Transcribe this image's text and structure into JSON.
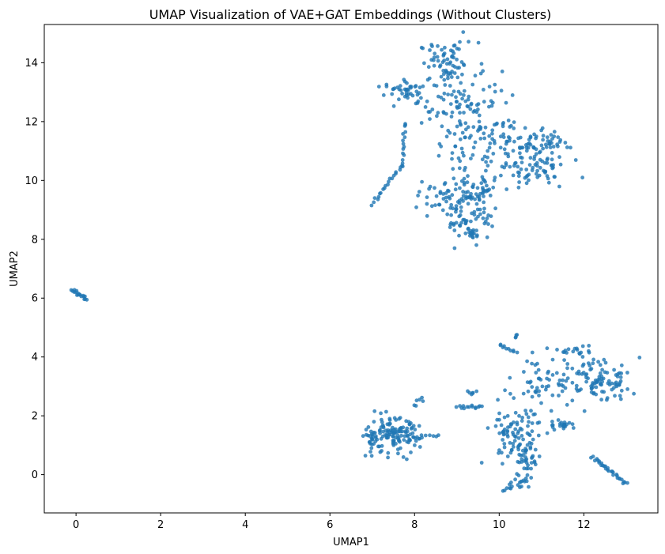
{
  "chart_data": {
    "type": "scatter",
    "title": "UMAP Visualization of VAE+GAT Embeddings (Without Clusters)",
    "xlabel": "UMAP1",
    "ylabel": "UMAP2",
    "xlim": [
      -0.75,
      13.75
    ],
    "ylim": [
      -1.3,
      15.3
    ],
    "xticks": [
      0,
      2,
      4,
      6,
      8,
      10,
      12
    ],
    "yticks": [
      0,
      2,
      4,
      6,
      8,
      10,
      12,
      14
    ],
    "grid": false,
    "legend": "none",
    "point_color": "#1f77b4",
    "point_alpha": 0.8,
    "clusters": [
      {
        "kind": "blob",
        "cx": 8.8,
        "cy": 14.0,
        "sx": 0.35,
        "sy": 0.35,
        "n": 70
      },
      {
        "kind": "blob",
        "cx": 7.8,
        "cy": 13.0,
        "sx": 0.25,
        "sy": 0.2,
        "n": 45
      },
      {
        "kind": "blob",
        "cx": 9.3,
        "cy": 12.6,
        "sx": 0.55,
        "sy": 0.55,
        "n": 90
      },
      {
        "kind": "blob",
        "cx": 9.8,
        "cy": 11.3,
        "sx": 0.6,
        "sy": 0.4,
        "n": 80
      },
      {
        "kind": "blob",
        "cx": 10.8,
        "cy": 10.6,
        "sx": 0.45,
        "sy": 0.45,
        "n": 90
      },
      {
        "kind": "blob",
        "cx": 11.2,
        "cy": 11.3,
        "sx": 0.15,
        "sy": 0.15,
        "n": 18
      },
      {
        "kind": "blob",
        "cx": 9.3,
        "cy": 9.6,
        "sx": 0.45,
        "sy": 0.5,
        "n": 90
      },
      {
        "kind": "blob",
        "cx": 8.6,
        "cy": 9.4,
        "sx": 0.25,
        "sy": 0.25,
        "n": 30
      },
      {
        "kind": "blob",
        "cx": 9.3,
        "cy": 8.6,
        "sx": 0.3,
        "sy": 0.3,
        "n": 45
      },
      {
        "kind": "blob",
        "cx": 9.4,
        "cy": 8.1,
        "sx": 0.05,
        "sy": 0.05,
        "n": 8
      },
      {
        "kind": "line",
        "x0": 7.0,
        "y0": 9.2,
        "x1": 7.7,
        "y1": 10.5,
        "n": 20
      },
      {
        "kind": "line",
        "x0": 7.7,
        "y0": 10.5,
        "x1": 7.8,
        "y1": 12.0,
        "n": 15
      },
      {
        "kind": "blob",
        "cx": 7.5,
        "cy": 1.3,
        "sx": 0.3,
        "sy": 0.3,
        "n": 120
      },
      {
        "kind": "blob",
        "cx": 7.0,
        "cy": 1.25,
        "sx": 0.1,
        "sy": 0.25,
        "n": 25
      },
      {
        "kind": "line",
        "x0": 7.9,
        "y0": 1.3,
        "x1": 8.6,
        "y1": 1.3,
        "n": 10
      },
      {
        "kind": "line",
        "x0": 8.0,
        "y0": 2.4,
        "x1": 8.2,
        "y1": 2.6,
        "n": 6
      },
      {
        "kind": "line",
        "x0": 9.0,
        "y0": 2.3,
        "x1": 9.6,
        "y1": 2.3,
        "n": 14
      },
      {
        "kind": "blob",
        "cx": 9.4,
        "cy": 2.8,
        "sx": 0.06,
        "sy": 0.05,
        "n": 6
      },
      {
        "kind": "blob",
        "cx": 10.3,
        "cy": 1.2,
        "sx": 0.3,
        "sy": 0.45,
        "n": 60
      },
      {
        "kind": "blob",
        "cx": 10.7,
        "cy": 0.6,
        "sx": 0.15,
        "sy": 0.35,
        "n": 35
      },
      {
        "kind": "blob",
        "cx": 10.5,
        "cy": -0.2,
        "sx": 0.1,
        "sy": 0.12,
        "n": 15
      },
      {
        "kind": "line",
        "x0": 10.1,
        "y0": -0.55,
        "x1": 10.3,
        "y1": -0.4,
        "n": 6
      },
      {
        "kind": "blob",
        "cx": 10.6,
        "cy": 1.9,
        "sx": 0.3,
        "sy": 0.3,
        "n": 30
      },
      {
        "kind": "blob",
        "cx": 11.5,
        "cy": 1.7,
        "sx": 0.15,
        "sy": 0.1,
        "n": 22
      },
      {
        "kind": "blob",
        "cx": 11.0,
        "cy": 3.2,
        "sx": 0.4,
        "sy": 0.4,
        "n": 40
      },
      {
        "kind": "blob",
        "cx": 12.2,
        "cy": 3.2,
        "sx": 0.45,
        "sy": 0.45,
        "n": 90
      },
      {
        "kind": "blob",
        "cx": 12.7,
        "cy": 3.1,
        "sx": 0.2,
        "sy": 0.2,
        "n": 25
      },
      {
        "kind": "blob",
        "cx": 11.7,
        "cy": 4.2,
        "sx": 0.15,
        "sy": 0.08,
        "n": 15
      },
      {
        "kind": "line",
        "x0": 10.0,
        "y0": 4.4,
        "x1": 10.4,
        "y1": 4.2,
        "n": 10
      },
      {
        "kind": "blob",
        "cx": 10.4,
        "cy": 4.7,
        "sx": 0.04,
        "sy": 0.04,
        "n": 4
      },
      {
        "kind": "line",
        "x0": 12.2,
        "y0": 0.6,
        "x1": 13.0,
        "y1": -0.3,
        "n": 30
      },
      {
        "kind": "line",
        "x0": -0.1,
        "y0": 6.3,
        "x1": 0.25,
        "y1": 5.95,
        "n": 18
      }
    ]
  }
}
